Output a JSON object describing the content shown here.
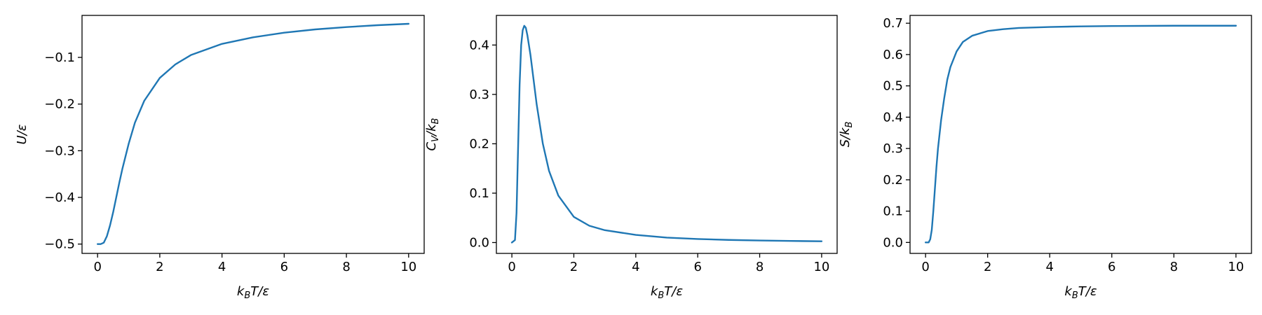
{
  "chart_data": [
    {
      "type": "line",
      "title": "",
      "xlabel": {
        "pre": "k",
        "sub": "B",
        "post": "T/ε"
      },
      "ylabel": {
        "pre": "U/ε",
        "sub": "",
        "post": ""
      },
      "xlim": [
        -0.5,
        10.5
      ],
      "ylim": [
        -0.52,
        -0.01
      ],
      "xticks": [
        0,
        2,
        4,
        6,
        8,
        10
      ],
      "xtick_labels": [
        "0",
        "2",
        "4",
        "6",
        "8",
        "10"
      ],
      "yticks": [
        -0.5,
        -0.4,
        -0.3,
        -0.2,
        -0.1
      ],
      "ytick_labels": [
        "−0.5",
        "−0.4",
        "−0.3",
        "−0.2",
        "−0.1"
      ],
      "grid": false,
      "series": [
        {
          "color": "#1f77b4",
          "x": [
            0.0,
            0.1,
            0.2,
            0.3,
            0.4,
            0.5,
            0.6,
            0.7,
            0.8,
            1.0,
            1.2,
            1.5,
            2.0,
            2.5,
            3.0,
            4.0,
            5.0,
            6.0,
            7.0,
            8.0,
            9.0,
            10.0
          ],
          "values": [
            -0.5,
            -0.5,
            -0.497,
            -0.483,
            -0.46,
            -0.432,
            -0.4,
            -0.368,
            -0.338,
            -0.285,
            -0.24,
            -0.193,
            -0.144,
            -0.115,
            -0.095,
            -0.071,
            -0.057,
            -0.047,
            -0.04,
            -0.035,
            -0.031,
            -0.028
          ]
        }
      ]
    },
    {
      "type": "line",
      "title": "",
      "xlabel": {
        "pre": "k",
        "sub": "B",
        "post": "T/ε"
      },
      "ylabel": {
        "pre": "C",
        "sub": "V",
        "post": "/k",
        "sub2": "B"
      },
      "xlim": [
        -0.5,
        10.5
      ],
      "ylim": [
        -0.022,
        0.46
      ],
      "xticks": [
        0,
        2,
        4,
        6,
        8,
        10
      ],
      "xtick_labels": [
        "0",
        "2",
        "4",
        "6",
        "8",
        "10"
      ],
      "yticks": [
        0.0,
        0.1,
        0.2,
        0.3,
        0.4
      ],
      "ytick_labels": [
        "0.0",
        "0.1",
        "0.2",
        "0.3",
        "0.4"
      ],
      "grid": false,
      "series": [
        {
          "color": "#1f77b4",
          "x": [
            0.0,
            0.1,
            0.15,
            0.2,
            0.25,
            0.3,
            0.35,
            0.4,
            0.45,
            0.5,
            0.6,
            0.7,
            0.8,
            0.9,
            1.0,
            1.2,
            1.5,
            2.0,
            2.5,
            3.0,
            4.0,
            5.0,
            6.0,
            7.0,
            8.0,
            9.0,
            10.0
          ],
          "values": [
            0.0,
            0.005,
            0.06,
            0.19,
            0.32,
            0.4,
            0.43,
            0.439,
            0.435,
            0.42,
            0.38,
            0.33,
            0.28,
            0.24,
            0.2,
            0.145,
            0.095,
            0.052,
            0.034,
            0.025,
            0.0155,
            0.01,
            0.0072,
            0.0053,
            0.0041,
            0.0032,
            0.0026
          ]
        }
      ]
    },
    {
      "type": "line",
      "title": "",
      "xlabel": {
        "pre": "k",
        "sub": "B",
        "post": "T/ε"
      },
      "ylabel": {
        "pre": "S/k",
        "sub": "B",
        "post": ""
      },
      "xlim": [
        -0.5,
        10.5
      ],
      "ylim": [
        -0.035,
        0.725
      ],
      "xticks": [
        0,
        2,
        4,
        6,
        8,
        10
      ],
      "xtick_labels": [
        "0",
        "2",
        "4",
        "6",
        "8",
        "10"
      ],
      "yticks": [
        0.0,
        0.1,
        0.2,
        0.3,
        0.4,
        0.5,
        0.6,
        0.7
      ],
      "ytick_labels": [
        "0.0",
        "0.1",
        "0.2",
        "0.3",
        "0.4",
        "0.5",
        "0.6",
        "0.7"
      ],
      "grid": false,
      "series": [
        {
          "color": "#1f77b4",
          "x": [
            0.0,
            0.1,
            0.15,
            0.2,
            0.25,
            0.3,
            0.35,
            0.4,
            0.5,
            0.6,
            0.7,
            0.8,
            1.0,
            1.2,
            1.5,
            2.0,
            2.5,
            3.0,
            4.0,
            5.0,
            6.0,
            8.0,
            10.0
          ],
          "values": [
            0.0,
            0.0,
            0.01,
            0.04,
            0.1,
            0.17,
            0.24,
            0.3,
            0.39,
            0.46,
            0.52,
            0.56,
            0.61,
            0.64,
            0.66,
            0.675,
            0.681,
            0.685,
            0.688,
            0.69,
            0.691,
            0.692,
            0.692
          ]
        }
      ]
    }
  ]
}
